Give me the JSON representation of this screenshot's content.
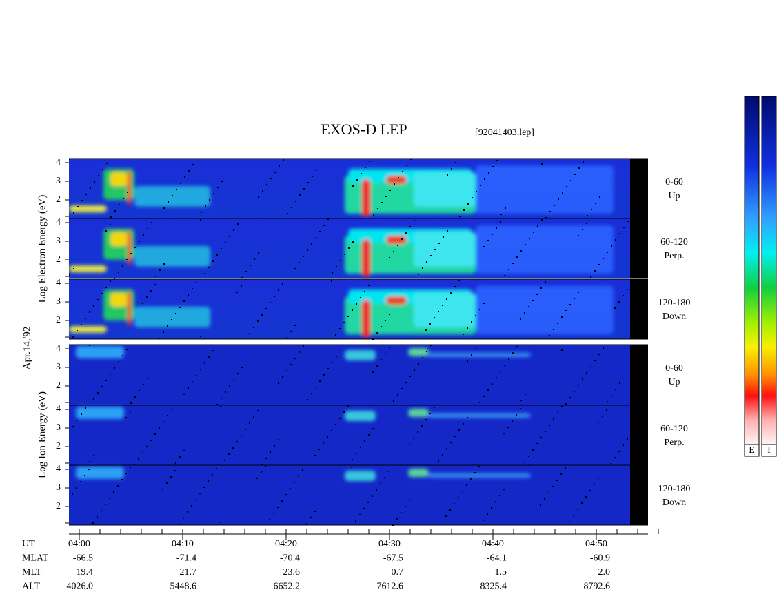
{
  "header": {
    "title": "EXOS-D LEP",
    "file": "[92041403.lep]"
  },
  "date": "Apr.14,'92",
  "colorbars": [
    "E",
    "I"
  ],
  "groups": [
    {
      "axis_label": "Log Electron Energy (eV)",
      "panels": [
        {
          "angle": "0-60",
          "direction": "Up",
          "yticks": [
            "4",
            "3",
            "2"
          ]
        },
        {
          "angle": "60-120",
          "direction": "Perp.",
          "yticks": [
            "4",
            "3",
            "2"
          ]
        },
        {
          "angle": "120-180",
          "direction": "Down",
          "yticks": [
            "4",
            "3",
            "2"
          ]
        }
      ]
    },
    {
      "axis_label": "Log Ion Energy (eV)",
      "panels": [
        {
          "angle": "0-60",
          "direction": "Up",
          "yticks": [
            "4",
            "3",
            "2"
          ]
        },
        {
          "angle": "60-120",
          "direction": "Perp.",
          "yticks": [
            "4",
            "3",
            "2"
          ]
        },
        {
          "angle": "120-180",
          "direction": "Down",
          "yticks": [
            "4",
            "3",
            "2"
          ]
        }
      ]
    }
  ],
  "table": {
    "rows": [
      {
        "label": "UT",
        "values": [
          "04:00",
          "04:10",
          "04:20",
          "04:30",
          "04:40",
          "04:50"
        ]
      },
      {
        "label": "MLAT",
        "values": [
          "-66.5",
          "-71.4",
          "-70.4",
          "-67.5",
          "-64.1",
          "-60.9"
        ]
      },
      {
        "label": "MLT",
        "values": [
          "19.4",
          "21.7",
          "23.6",
          "0.7",
          "1.5",
          "2.0"
        ]
      },
      {
        "label": "ALT",
        "values": [
          "4026.0",
          "5448.6",
          "6652.2",
          "7612.6",
          "8325.4",
          "8792.6"
        ]
      }
    ]
  }
}
